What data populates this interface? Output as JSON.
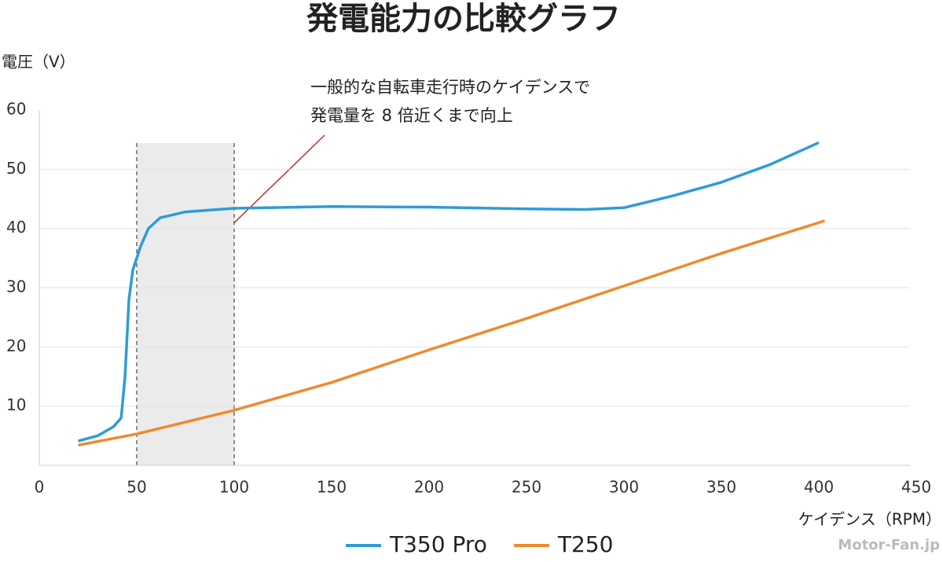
{
  "chart_data": {
    "type": "line",
    "title": "発電能力の比較グラフ",
    "y_label": "電圧（V）",
    "x_label": "ケイデンス（RPM）",
    "annotation": [
      "一般的な自転車走行時のケイデンスで",
      "発電量を 8 倍近くまで向上"
    ],
    "watermark": "Motor-Fan.jp",
    "xlim": [
      0,
      450
    ],
    "ylim": [
      0,
      60
    ],
    "xticks": [
      0,
      50,
      100,
      150,
      200,
      250,
      300,
      350,
      400,
      450
    ],
    "yticks": [
      10,
      20,
      30,
      40,
      50,
      60
    ],
    "highlight_range": [
      50,
      100
    ],
    "grid": true,
    "legend": "bottom",
    "series": [
      {
        "name": "T350 Pro",
        "color": "#2f9bd6",
        "x": [
          20,
          30,
          38,
          42,
          44,
          46,
          48,
          52,
          56,
          62,
          75,
          100,
          150,
          200,
          250,
          280,
          300,
          325,
          350,
          375,
          400
        ],
        "values": [
          4.1,
          5,
          6.5,
          8,
          15,
          28,
          33,
          37,
          40,
          41.8,
          42.8,
          43.4,
          43.7,
          43.6,
          43.3,
          43.2,
          43.5,
          45.5,
          47.8,
          50.8,
          54.5
        ]
      },
      {
        "name": "T250",
        "color": "#ef8a2b",
        "x": [
          20,
          50,
          100,
          150,
          200,
          250,
          300,
          350,
          403
        ],
        "values": [
          3.4,
          5.3,
          9.3,
          14,
          19.5,
          24.8,
          30.3,
          35.8,
          41.3
        ]
      }
    ]
  }
}
